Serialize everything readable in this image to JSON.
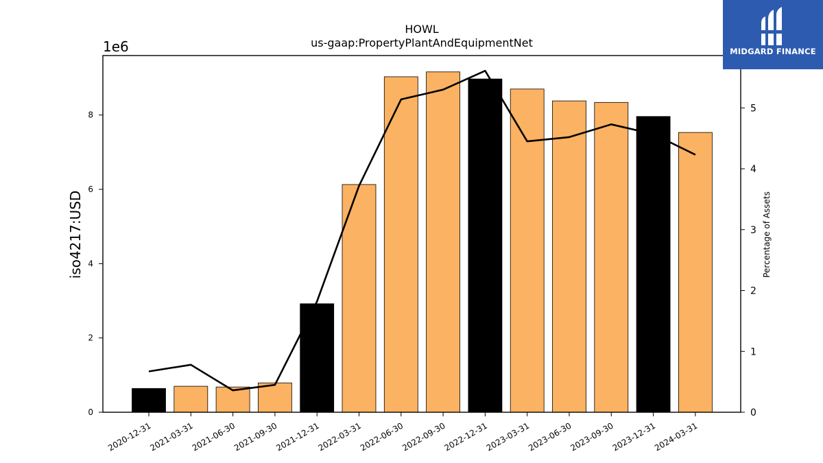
{
  "chart_data": {
    "type": "bar",
    "title": "HOWL",
    "subtitle": "us-gaap:PropertyPlantAndEquipmentNet",
    "ylabel": "iso4217:USD",
    "y_offset_label": "1e6",
    "y2label": "Percentage of Assets",
    "categories": [
      "2020-12-31",
      "2021-03-31",
      "2021-06-30",
      "2021-09-30",
      "2021-12-31",
      "2022-03-31",
      "2022-06-30",
      "2022-09-30",
      "2022-12-31",
      "2023-03-31",
      "2023-06-30",
      "2023-09-30",
      "2023-12-31",
      "2024-03-31"
    ],
    "series": [
      {
        "type": "bar",
        "values": [
          640000,
          700000,
          680000,
          790000,
          2920000,
          6130000,
          9030000,
          9160000,
          8970000,
          8700000,
          8380000,
          8340000,
          7960000,
          7530000
        ],
        "highlight": [
          true,
          false,
          false,
          false,
          true,
          false,
          false,
          false,
          true,
          false,
          false,
          false,
          true,
          false
        ],
        "color": "#fbb262",
        "highlight_color": "#000000"
      },
      {
        "type": "line",
        "axis": "right",
        "values": [
          0.67,
          0.78,
          0.36,
          0.45,
          1.82,
          3.72,
          5.14,
          5.3,
          5.61,
          4.45,
          4.52,
          4.73,
          4.57,
          4.23
        ],
        "color": "#000000"
      }
    ],
    "ylim": [
      0,
      9600000
    ],
    "y_ticks": [
      0,
      2,
      4,
      6,
      8
    ],
    "y2lim": [
      0,
      5.86
    ],
    "y2_ticks": [
      0,
      1,
      2,
      3,
      4,
      5
    ],
    "grid": false
  },
  "logo": {
    "text": "MIDGARD FINANCE",
    "color": "#2d5bb0"
  }
}
